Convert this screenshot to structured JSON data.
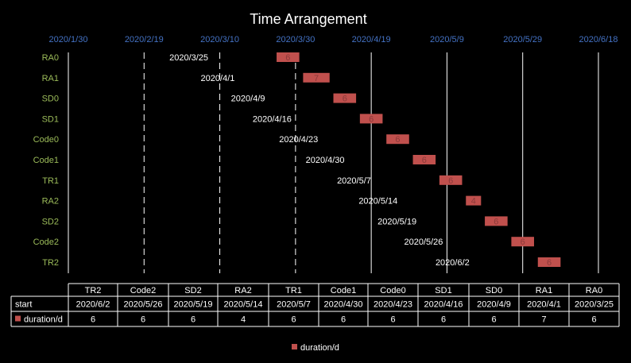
{
  "chart_data": {
    "type": "bar",
    "title": "Time Arrangement",
    "x_ticks": [
      "2020/1/30",
      "2020/2/19",
      "2020/3/10",
      "2020/3/30",
      "2020/4/19",
      "2020/5/9",
      "2020/5/29",
      "2020/6/18"
    ],
    "xlim": [
      "2020/1/30",
      "2020/6/18"
    ],
    "tasks": [
      "RA0",
      "RA1",
      "SD0",
      "SD1",
      "Code0",
      "Code1",
      "TR1",
      "RA2",
      "SD2",
      "Code2",
      "TR2"
    ],
    "start": [
      "2020/3/25",
      "2020/4/1",
      "2020/4/9",
      "2020/4/16",
      "2020/4/23",
      "2020/4/30",
      "2020/5/7",
      "2020/5/14",
      "2020/5/19",
      "2020/5/26",
      "2020/6/2"
    ],
    "series": [
      {
        "name": "duration/d",
        "values": [
          6,
          7,
          6,
          6,
          6,
          6,
          6,
          4,
          6,
          6,
          6
        ]
      }
    ],
    "table": {
      "columns": [
        "TR2",
        "Code2",
        "SD2",
        "RA2",
        "TR1",
        "Code1",
        "Code0",
        "SD1",
        "SD0",
        "RA1",
        "RA0"
      ],
      "rows": [
        {
          "label": "start",
          "values": [
            "2020/6/2",
            "2020/5/26",
            "2020/5/19",
            "2020/5/14",
            "2020/5/7",
            "2020/4/30",
            "2020/4/23",
            "2020/4/16",
            "2020/4/9",
            "2020/4/1",
            "2020/3/25"
          ]
        },
        {
          "label": "duration/d",
          "values": [
            "6",
            "6",
            "6",
            "4",
            "6",
            "6",
            "6",
            "6",
            "6",
            "7",
            "6"
          ]
        }
      ]
    },
    "legend": {
      "label": "duration/d",
      "placement": "bottom"
    },
    "grid": true,
    "colors": {
      "bar": "#c0504d",
      "bar_label": "#8b3a3a",
      "x_tick": "#4472c4",
      "y_tick": "#9bbb59",
      "text": "#ffffff",
      "background": "#000000"
    }
  }
}
